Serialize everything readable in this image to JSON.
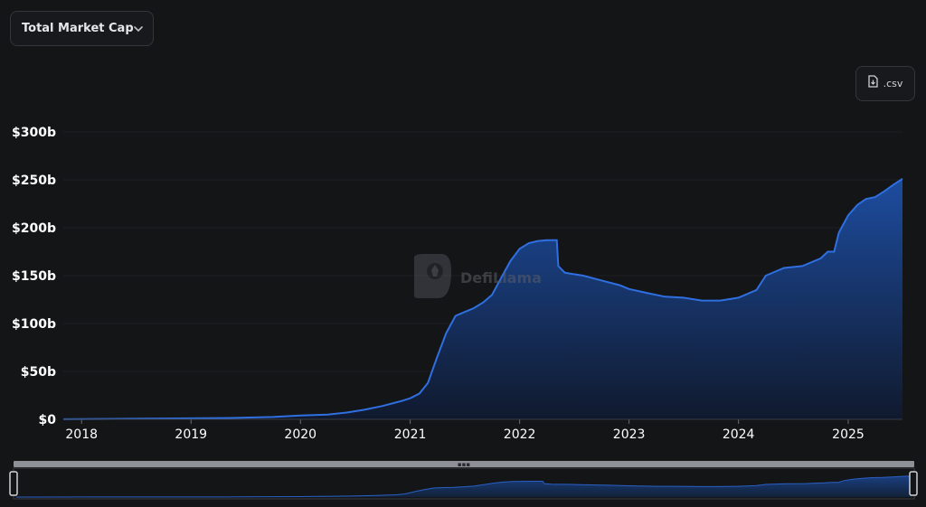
{
  "metric_select": {
    "label": "Total Market Cap",
    "icon": "chevron-down-icon"
  },
  "csv_button": {
    "label": ".csv",
    "icon": "file-download-icon"
  },
  "watermark": {
    "text": "DefiLlama",
    "icon": "llama-logo-icon"
  },
  "colors": {
    "background": "#141517",
    "line": "#2f6fe0",
    "area_top": "#1d4fa6",
    "area_bottom": "#101a2f"
  },
  "chart_data": {
    "type": "area",
    "title": "",
    "xlabel": "",
    "ylabel": "",
    "x_ticks": [
      "2018",
      "2019",
      "2020",
      "2021",
      "2022",
      "2023",
      "2024",
      "2025"
    ],
    "y_ticks": [
      "$0",
      "$50b",
      "$100b",
      "$150b",
      "$200b",
      "$250b",
      "$300b"
    ],
    "ylim": [
      0,
      300
    ],
    "y_unit": "billion USD",
    "grid": true,
    "legend": "none",
    "series": [
      {
        "values_x": [
          "2017-11-01",
          "2018-01-01",
          "2018-06-01",
          "2019-01-01",
          "2019-06-01",
          "2019-10-01",
          "2020-01-01",
          "2020-04-01",
          "2020-06-01",
          "2020-08-01",
          "2020-10-01",
          "2020-12-01",
          "2021-01-01",
          "2021-02-01",
          "2021-03-01",
          "2021-04-01",
          "2021-05-01",
          "2021-06-01",
          "2021-07-01",
          "2021-08-01",
          "2021-09-01",
          "2021-10-01",
          "2021-11-01",
          "2021-12-01",
          "2022-01-01",
          "2022-02-01",
          "2022-03-01",
          "2022-04-01",
          "2022-05-05",
          "2022-05-10",
          "2022-06-01",
          "2022-08-01",
          "2022-10-01",
          "2022-12-01",
          "2023-01-01",
          "2023-03-01",
          "2023-05-01",
          "2023-07-01",
          "2023-09-01",
          "2023-11-01",
          "2024-01-01",
          "2024-03-01",
          "2024-04-01",
          "2024-06-01",
          "2024-08-01",
          "2024-10-01",
          "2024-10-25",
          "2024-11-15",
          "2024-12-01",
          "2025-01-01",
          "2025-02-01",
          "2025-03-01",
          "2025-04-01",
          "2025-05-01",
          "2025-06-01",
          "2025-07-01"
        ],
        "values_y": [
          0.1,
          0.3,
          0.6,
          1,
          1.5,
          2.5,
          4,
          5,
          7,
          10,
          14,
          19,
          22,
          27,
          38,
          65,
          90,
          108,
          112,
          116,
          122,
          130,
          148,
          165,
          178,
          184,
          186,
          187,
          187,
          160,
          153,
          150,
          145,
          140,
          136,
          132,
          128,
          127,
          124,
          124,
          127,
          135,
          150,
          158,
          160,
          168,
          175,
          175,
          195,
          213,
          224,
          230,
          232,
          238,
          245,
          251
        ]
      }
    ]
  }
}
